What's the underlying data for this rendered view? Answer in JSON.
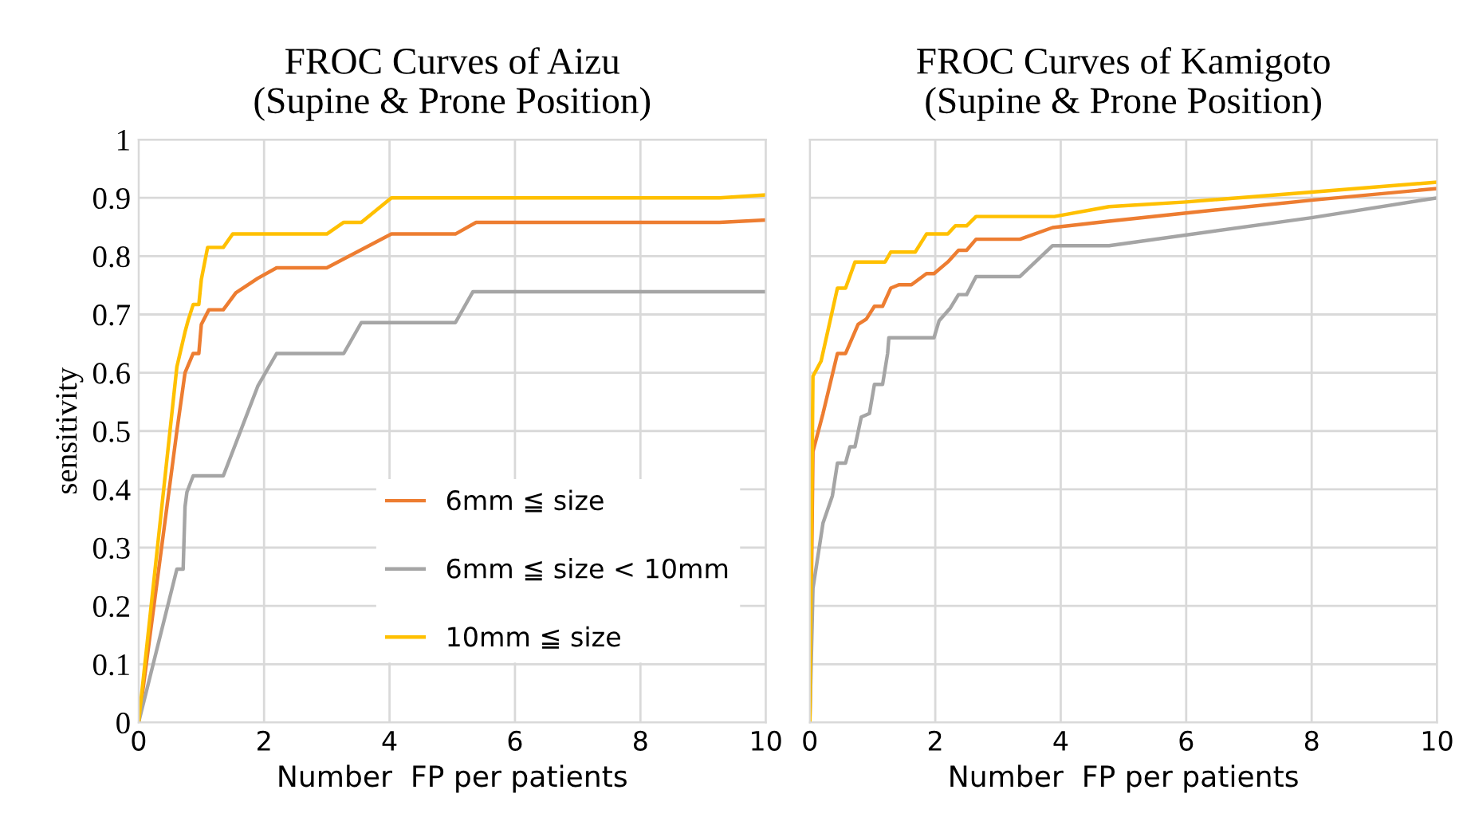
{
  "chart_data": [
    {
      "type": "line",
      "title": "FROC Curves of Aizu\n(Supine & Prone Position)",
      "xlabel": "Number  FP per patients",
      "ylabel": "sensitivity",
      "xlim": [
        0,
        10
      ],
      "ylim": [
        0,
        1
      ],
      "xticks": [
        0,
        2,
        4,
        6,
        8,
        10
      ],
      "yticks": [
        0,
        0.1,
        0.2,
        0.3,
        0.4,
        0.5,
        0.6,
        0.7,
        0.8,
        0.9,
        1
      ],
      "grid": true,
      "legend": "bottom right",
      "marker": "none",
      "line_style": "solid",
      "series": [
        {
          "name": "6mm ≦ size",
          "color": "#ed7d31",
          "x": [
            0,
            0.61,
            0.74,
            0.87,
            0.96,
            1.0,
            1.12,
            1.35,
            1.55,
            1.9,
            2.2,
            3.0,
            4.03,
            5.05,
            5.38,
            9.26,
            10
          ],
          "values": [
            0,
            0.5,
            0.6,
            0.633,
            0.633,
            0.683,
            0.708,
            0.708,
            0.737,
            0.762,
            0.78,
            0.78,
            0.838,
            0.838,
            0.858,
            0.858,
            0.862
          ]
        },
        {
          "name": "6mm ≦ size < 10mm",
          "color": "#a5a5a5",
          "x": [
            0,
            0.61,
            0.71,
            0.74,
            0.77,
            0.87,
            1.35,
            1.9,
            2.2,
            3.27,
            3.55,
            5.05,
            5.33,
            10
          ],
          "values": [
            0,
            0.263,
            0.263,
            0.37,
            0.395,
            0.423,
            0.423,
            0.577,
            0.633,
            0.633,
            0.686,
            0.686,
            0.739,
            0.739
          ]
        },
        {
          "name": "10mm ≦ size",
          "color": "#ffc000",
          "x": [
            0,
            0.61,
            0.74,
            0.79,
            0.87,
            0.96,
            1.0,
            1.1,
            1.35,
            1.5,
            3.0,
            3.27,
            3.55,
            4.03,
            9.26,
            10
          ],
          "values": [
            0,
            0.61,
            0.67,
            0.69,
            0.717,
            0.717,
            0.76,
            0.815,
            0.815,
            0.838,
            0.838,
            0.858,
            0.858,
            0.9,
            0.9,
            0.905
          ]
        }
      ]
    },
    {
      "type": "line",
      "title": "FROC Curves of Kamigoto\n(Supine & Prone Position)",
      "xlabel": "Number  FP per patients",
      "xlim": [
        0,
        10
      ],
      "ylim": [
        0,
        1
      ],
      "xticks": [
        0,
        2,
        4,
        6,
        8,
        10
      ],
      "yticks": [
        0,
        0.1,
        0.2,
        0.3,
        0.4,
        0.5,
        0.6,
        0.7,
        0.8,
        0.9,
        1
      ],
      "grid": true,
      "tick_labels": "x",
      "marker": "none",
      "line_style": "solid",
      "series": [
        {
          "color": "#ed7d31",
          "x": [
            0,
            0.05,
            0.21,
            0.44,
            0.57,
            0.77,
            0.9,
            1.03,
            1.16,
            1.29,
            1.42,
            1.62,
            1.86,
            1.98,
            2.2,
            2.37,
            2.5,
            2.65,
            3.35,
            3.87,
            4.77,
            6,
            8,
            10
          ],
          "values": [
            0,
            0.465,
            0.53,
            0.633,
            0.633,
            0.683,
            0.692,
            0.714,
            0.714,
            0.745,
            0.751,
            0.751,
            0.77,
            0.77,
            0.79,
            0.81,
            0.81,
            0.829,
            0.829,
            0.849,
            0.86,
            0.874,
            0.896,
            0.916
          ]
        },
        {
          "color": "#a5a5a5",
          "x": [
            0,
            0.05,
            0.21,
            0.36,
            0.44,
            0.57,
            0.64,
            0.72,
            0.82,
            0.95,
            1.03,
            1.16,
            1.24,
            1.26,
            1.98,
            2.06,
            2.24,
            2.37,
            2.5,
            2.65,
            3.35,
            3.87,
            4.77,
            8,
            10
          ],
          "values": [
            0,
            0.23,
            0.342,
            0.389,
            0.445,
            0.445,
            0.473,
            0.473,
            0.524,
            0.53,
            0.58,
            0.58,
            0.633,
            0.66,
            0.66,
            0.689,
            0.711,
            0.734,
            0.734,
            0.765,
            0.765,
            0.818,
            0.818,
            0.866,
            0.9
          ]
        },
        {
          "color": "#ffc000",
          "x": [
            0,
            0.05,
            0.18,
            0.44,
            0.57,
            0.72,
            1.2,
            1.29,
            1.68,
            1.86,
            2.2,
            2.32,
            2.5,
            2.65,
            3.9,
            4.77,
            6,
            8,
            10
          ],
          "values": [
            0,
            0.594,
            0.62,
            0.745,
            0.745,
            0.79,
            0.79,
            0.807,
            0.807,
            0.838,
            0.838,
            0.852,
            0.852,
            0.868,
            0.868,
            0.885,
            0.893,
            0.91,
            0.927
          ]
        }
      ]
    }
  ]
}
